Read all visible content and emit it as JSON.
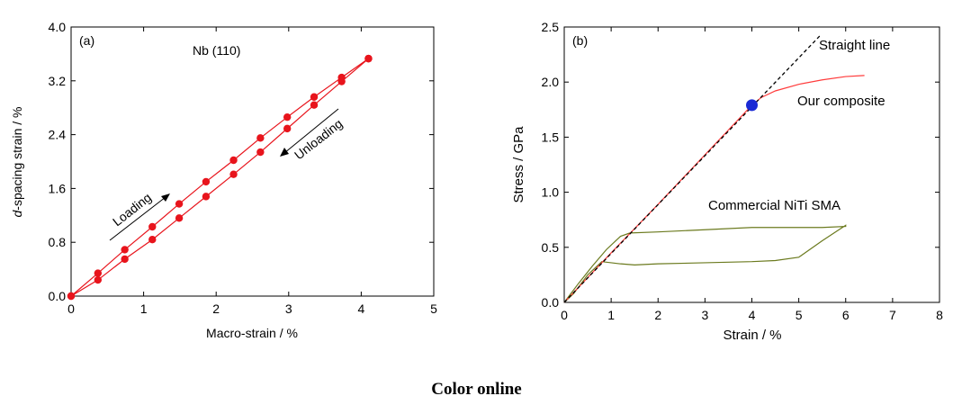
{
  "caption": "Color online",
  "chart_data": [
    {
      "type": "scatter",
      "panel_label": "(a)",
      "annotation": "Nb (110)",
      "xlabel": "Macro-strain / %",
      "ylabel_italic": "d",
      "ylabel_rest": "-spacing strain / %",
      "xlim": [
        0,
        5
      ],
      "ylim": [
        0,
        4.0
      ],
      "xticks": [
        0,
        1,
        2,
        3,
        4,
        5
      ],
      "xtick_labels": [
        "0",
        "1",
        "2",
        "3",
        "4",
        "5"
      ],
      "yticks": [
        0,
        0.8,
        1.6,
        2.4,
        3.2,
        4.0
      ],
      "ytick_labels": [
        "0.0",
        "0.8",
        "1.6",
        "2.4",
        "3.2",
        "4.0"
      ],
      "color": "#e8141c",
      "series": [
        {
          "name": "Loading",
          "x": [
            0,
            0.37,
            0.74,
            1.12,
            1.49,
            1.86,
            2.24,
            2.61,
            2.98,
            3.35,
            3.73,
            4.1
          ],
          "y": [
            0,
            0.34,
            0.69,
            1.03,
            1.37,
            1.7,
            2.02,
            2.35,
            2.66,
            2.96,
            3.25,
            3.53
          ]
        },
        {
          "name": "Unloading",
          "x": [
            4.1,
            3.73,
            3.35,
            2.98,
            2.61,
            2.24,
            1.86,
            1.49,
            1.12,
            0.74,
            0.37,
            0
          ],
          "y": [
            3.53,
            3.19,
            2.84,
            2.49,
            2.14,
            1.81,
            1.48,
            1.16,
            0.84,
            0.55,
            0.24,
            0
          ]
        }
      ],
      "arrow_labels": [
        "Loading",
        "Unloading"
      ],
      "grid": false
    },
    {
      "type": "line",
      "panel_label": "(b)",
      "xlabel": "Strain / %",
      "ylabel": "Stress / GPa",
      "xlim": [
        0,
        8
      ],
      "ylim": [
        0,
        2.5
      ],
      "xticks": [
        0,
        1,
        2,
        3,
        4,
        5,
        6,
        7,
        8
      ],
      "xtick_labels": [
        "0",
        "1",
        "2",
        "3",
        "4",
        "5",
        "6",
        "7",
        "8"
      ],
      "yticks": [
        0,
        0.5,
        1.0,
        1.5,
        2.0,
        2.5
      ],
      "ytick_labels": [
        "0.0",
        "0.5",
        "1.0",
        "1.5",
        "2.0",
        "2.5"
      ],
      "series": [
        {
          "name": "Straight line",
          "color": "#000000",
          "style": "dashed",
          "x": [
            0,
            5.45
          ],
          "y": [
            0,
            2.42
          ]
        },
        {
          "name": "Our composite",
          "color": "#ff3b3b",
          "style": "solid",
          "x": [
            0,
            1,
            2,
            3,
            4.0,
            4.2,
            4.5,
            5.0,
            5.5,
            6.0,
            6.4
          ],
          "y": [
            0,
            0.45,
            0.89,
            1.34,
            1.79,
            1.86,
            1.92,
            1.98,
            2.02,
            2.05,
            2.06
          ]
        },
        {
          "name": "Commercial NiTi SMA",
          "color": "#6b7a1e",
          "style": "solid",
          "x": [
            0,
            0.3,
            0.6,
            0.9,
            1.2,
            1.4,
            2.0,
            3.0,
            4.0,
            5.0,
            5.5,
            6.0,
            6.0,
            5.5,
            5.0,
            4.5,
            4.0,
            3.0,
            2.0,
            1.5,
            1.2,
            1.0,
            0.8,
            0.5,
            0.2,
            0
          ],
          "y": [
            0,
            0.17,
            0.33,
            0.48,
            0.6,
            0.63,
            0.64,
            0.66,
            0.68,
            0.68,
            0.68,
            0.69,
            0.7,
            0.56,
            0.41,
            0.38,
            0.37,
            0.36,
            0.35,
            0.34,
            0.35,
            0.36,
            0.37,
            0.25,
            0.08,
            0
          ]
        }
      ],
      "marker": {
        "x": 4.0,
        "y": 1.79,
        "color": "#1a2ad4"
      },
      "grid": false
    }
  ]
}
